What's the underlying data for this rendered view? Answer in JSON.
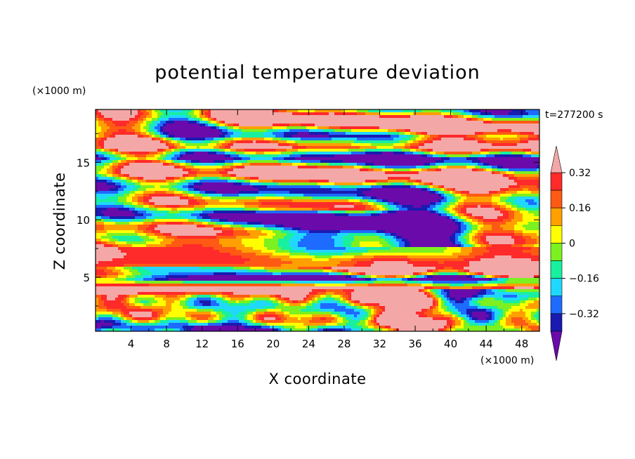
{
  "chart_data": {
    "type": "heatmap",
    "title": "potential temperature deviation",
    "time_label": "t=277200 s",
    "xlabel": "X coordinate",
    "ylabel": "Z coordinate",
    "x_unit": "(×1000 m)",
    "y_unit": "(×1000 m)",
    "xlim": [
      0,
      50
    ],
    "ylim": [
      0.3,
      19.6
    ],
    "x_ticks": [
      4,
      8,
      12,
      16,
      20,
      24,
      28,
      32,
      36,
      40,
      44,
      48
    ],
    "x_tick_labels": [
      "4",
      "8",
      "12",
      "16",
      "20",
      "24",
      "28",
      "32",
      "36",
      "40",
      "44",
      "48"
    ],
    "y_ticks": [
      5,
      10,
      15
    ],
    "y_tick_labels": [
      "5",
      "10",
      "15"
    ],
    "colorbar": {
      "levels": [
        -0.4,
        -0.32,
        -0.24,
        -0.16,
        -0.08,
        0,
        0.08,
        0.16,
        0.24,
        0.32,
        0.4
      ],
      "tick_values": [
        -0.32,
        -0.16,
        0,
        0.16,
        0.32
      ],
      "tick_labels": [
        "−0.32",
        "−0.16",
        "0",
        "0.16",
        "0.32"
      ],
      "colors": [
        "#6a0aaa",
        "#1a1ab0",
        "#1e6bff",
        "#20d8ff",
        "#18f0a0",
        "#7cf020",
        "#ffff00",
        "#ffa000",
        "#ff5a14",
        "#ff2a2a",
        "#f4a7a7"
      ],
      "extend": "both",
      "under_color": "#6a0aaa",
      "over_color": "#f4a7a7"
    }
  }
}
